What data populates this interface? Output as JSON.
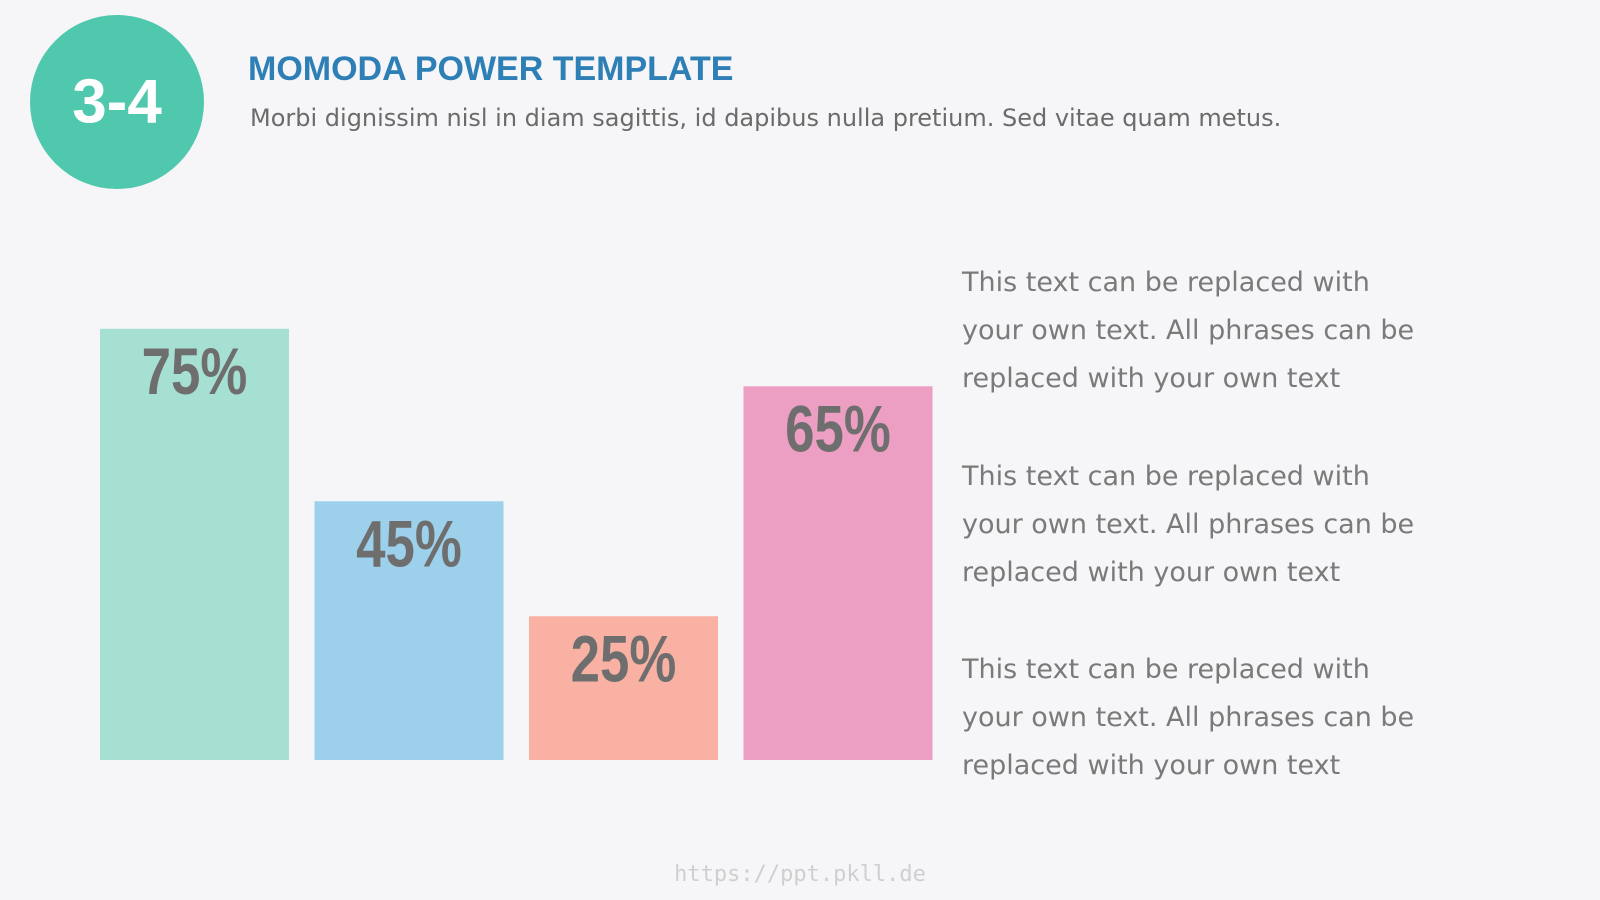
{
  "header": {
    "badge": "3-4",
    "title": "MOMODA POWER TEMPLATE",
    "subtitle": "Morbi dignissim nisl in diam sagittis, id dapibus nulla pretium. Sed vitae quam metus."
  },
  "chart_data": {
    "type": "bar",
    "values": [
      75,
      45,
      25,
      65
    ],
    "value_labels": [
      "75%",
      "45%",
      "25%",
      "65%"
    ],
    "colors": [
      "#a6e0d2",
      "#9dd0ea",
      "#f8b1a3",
      "#ec9fc3"
    ]
  },
  "paragraphs": [
    "This text can be replaced with your own text. All phrases can be replaced with your own text",
    "This text can be replaced with your own text. All phrases can be replaced with your own text",
    "This text can be replaced with your own text. All phrases can be replaced with your own text"
  ],
  "footer": "https://ppt.pkll.de"
}
